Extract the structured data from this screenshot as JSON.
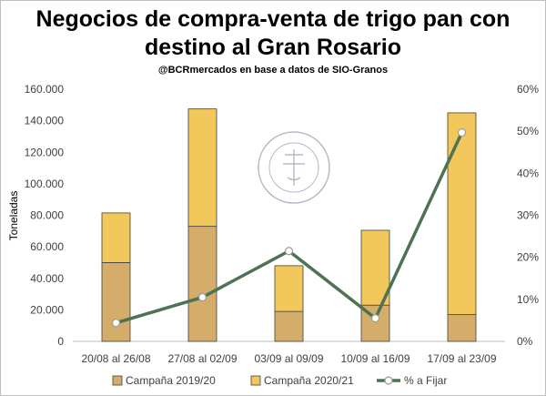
{
  "chart_data": {
    "type": "bar+line",
    "title_line1": "Negocios de compra-venta de trigo pan con",
    "title_line2": "destino al Gran Rosario",
    "subtitle": "@BCRmercados en base a datos de SIO-Granos",
    "ylabel": "Toneladas",
    "categories": [
      "20/08 al 26/08",
      "27/08 al 02/09",
      "03/09 al 09/09",
      "10/09 al 16/09",
      "17/09 al 23/09"
    ],
    "y_left": {
      "min": 0,
      "max": 160000,
      "step": 20000,
      "tick_labels": [
        "0",
        "20.000",
        "40.000",
        "60.000",
        "80.000",
        "100.000",
        "120.000",
        "140.000",
        "160.000"
      ]
    },
    "y_right": {
      "min": 0,
      "max": 0.6,
      "step": 0.1,
      "tick_labels": [
        "0%",
        "10%",
        "20%",
        "30%",
        "40%",
        "50%",
        "60%"
      ]
    },
    "series": [
      {
        "name": "Campaña 2019/20",
        "kind": "stacked-bar",
        "color": "#d4ad6a",
        "values": [
          50000,
          73000,
          19000,
          23000,
          17000
        ]
      },
      {
        "name": "Campaña 2020/21",
        "kind": "stacked-bar",
        "color": "#f2c75c",
        "values": [
          31500,
          74500,
          29000,
          47500,
          128000
        ]
      },
      {
        "name": "% a Fijar",
        "kind": "line",
        "axis": "right",
        "color": "#4e7254",
        "values": [
          0.044,
          0.105,
          0.215,
          0.055,
          0.497
        ]
      }
    ],
    "legend_position": "bottom",
    "grid": false
  },
  "watermark": {
    "text": "BOLSA DE COMERCIO DE ROSARIO"
  }
}
